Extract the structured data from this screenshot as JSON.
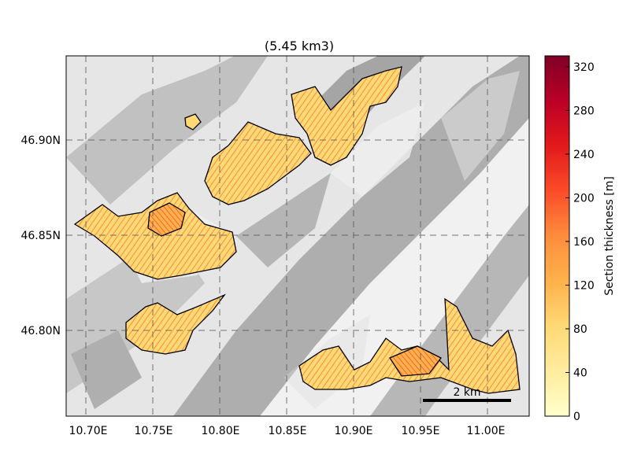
{
  "title": "(5.45 km3)",
  "map": {
    "lon_ticks": [
      "10.70E",
      "10.75E",
      "10.80E",
      "10.85E",
      "10.90E",
      "10.95E",
      "11.00E"
    ],
    "lat_ticks": [
      "46.90N",
      "46.85N",
      "46.80N"
    ],
    "lon_range": [
      10.683,
      11.037
    ],
    "lat_range": [
      46.755,
      46.945
    ],
    "grid": true,
    "scale_bar_label": "2 km",
    "colors": {
      "low": "#ffffcc",
      "mid": "#fd8d3c",
      "high": "#800026",
      "hillshade": "#d9d9d9"
    }
  },
  "colorbar": {
    "label": "Section thickness [m]",
    "ticks": [
      "0",
      "40",
      "80",
      "120",
      "160",
      "200",
      "240",
      "280",
      "320"
    ],
    "range": [
      0,
      330
    ],
    "colormap": "YlOrRd"
  }
}
